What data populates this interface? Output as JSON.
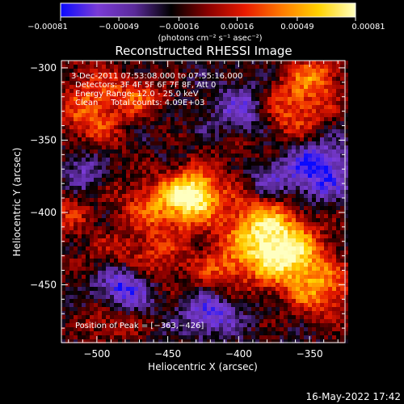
{
  "chart_data": {
    "type": "heatmap",
    "title": "Reconstructed RHESSI Image",
    "xlabel": "Heliocentric X (arcsec)",
    "ylabel": "Heliocentric Y (arcsec)",
    "xlim": [
      -525,
      -325
    ],
    "ylim": [
      -490,
      -295
    ],
    "x_ticks": [
      -500,
      -450,
      -400,
      -350
    ],
    "y_ticks": [
      -300,
      -350,
      -400,
      -450
    ],
    "x_tick_labels": [
      "−500",
      "−450",
      "−400",
      "−350"
    ],
    "y_tick_labels": [
      "−300",
      "−350",
      "−400",
      "−450"
    ],
    "colorbar": {
      "min": -0.00081,
      "max": 0.00081,
      "tick_values": [
        -0.00081,
        -0.00049,
        -0.00016,
        0.00016,
        0.00049,
        0.00081
      ],
      "tick_labels": [
        "−0.00081",
        "−0.00049",
        "−0.00016",
        "0.00016",
        "0.00049",
        "0.00081"
      ],
      "units": "(photons cm⁻² s⁻¹ asec⁻²)"
    },
    "colormap_stops": [
      "#0a0aff",
      "#7a3bd6",
      "#5a2a9a",
      "#000000",
      "#8a0000",
      "#e81a00",
      "#ff7a00",
      "#ffd200",
      "#ffffc0"
    ],
    "grid": false,
    "peak": [
      -363,
      -426
    ],
    "annotations": [
      "3-Dec-2011 07:53:08.000 to 07:55:16.000",
      "Detectors: 3F 4F 5F 6F 7F 8F, Att 0",
      "Energy Range: 12.0 - 25.0 keV",
      "Clean     Total counts: 4.09E+03",
      "Position of Peak = [−363,−426]"
    ],
    "footer_date": "16-May-2022 17:42",
    "sources": [
      {
        "x": -365,
        "y": -430,
        "amp": 1.0,
        "sx": 18,
        "sy": 16
      },
      {
        "x": -385,
        "y": -410,
        "amp": 0.85,
        "sx": 18,
        "sy": 18
      },
      {
        "x": -340,
        "y": -455,
        "amp": 0.6,
        "sx": 16,
        "sy": 14
      },
      {
        "x": -450,
        "y": -395,
        "amp": 0.75,
        "sx": 22,
        "sy": 14
      },
      {
        "x": -430,
        "y": -385,
        "amp": 0.85,
        "sx": 12,
        "sy": 12
      },
      {
        "x": -470,
        "y": -435,
        "amp": 0.55,
        "sx": 24,
        "sy": 14
      },
      {
        "x": -410,
        "y": -440,
        "amp": 0.45,
        "sx": 14,
        "sy": 12
      },
      {
        "x": -505,
        "y": -330,
        "amp": 0.6,
        "sx": 16,
        "sy": 22
      },
      {
        "x": -470,
        "y": -320,
        "amp": 0.5,
        "sx": 14,
        "sy": 10
      },
      {
        "x": -365,
        "y": -330,
        "amp": 0.6,
        "sx": 20,
        "sy": 16
      },
      {
        "x": -345,
        "y": -305,
        "amp": 0.55,
        "sx": 14,
        "sy": 12
      },
      {
        "x": -520,
        "y": -400,
        "amp": 0.35,
        "sx": 12,
        "sy": 14
      },
      {
        "x": -490,
        "y": -475,
        "amp": 0.4,
        "sx": 14,
        "sy": 10
      },
      {
        "x": -400,
        "y": -355,
        "amp": 0.25,
        "sx": 10,
        "sy": 10
      },
      {
        "x": -480,
        "y": -450,
        "amp": -0.9,
        "sx": 14,
        "sy": 12
      },
      {
        "x": -345,
        "y": -370,
        "amp": -0.8,
        "sx": 16,
        "sy": 14
      },
      {
        "x": -395,
        "y": -330,
        "amp": -0.6,
        "sx": 14,
        "sy": 14
      },
      {
        "x": -420,
        "y": -470,
        "amp": -0.6,
        "sx": 14,
        "sy": 10
      },
      {
        "x": -380,
        "y": -380,
        "amp": -0.5,
        "sx": 10,
        "sy": 10
      },
      {
        "x": -510,
        "y": -370,
        "amp": -0.5,
        "sx": 10,
        "sy": 12
      }
    ]
  }
}
